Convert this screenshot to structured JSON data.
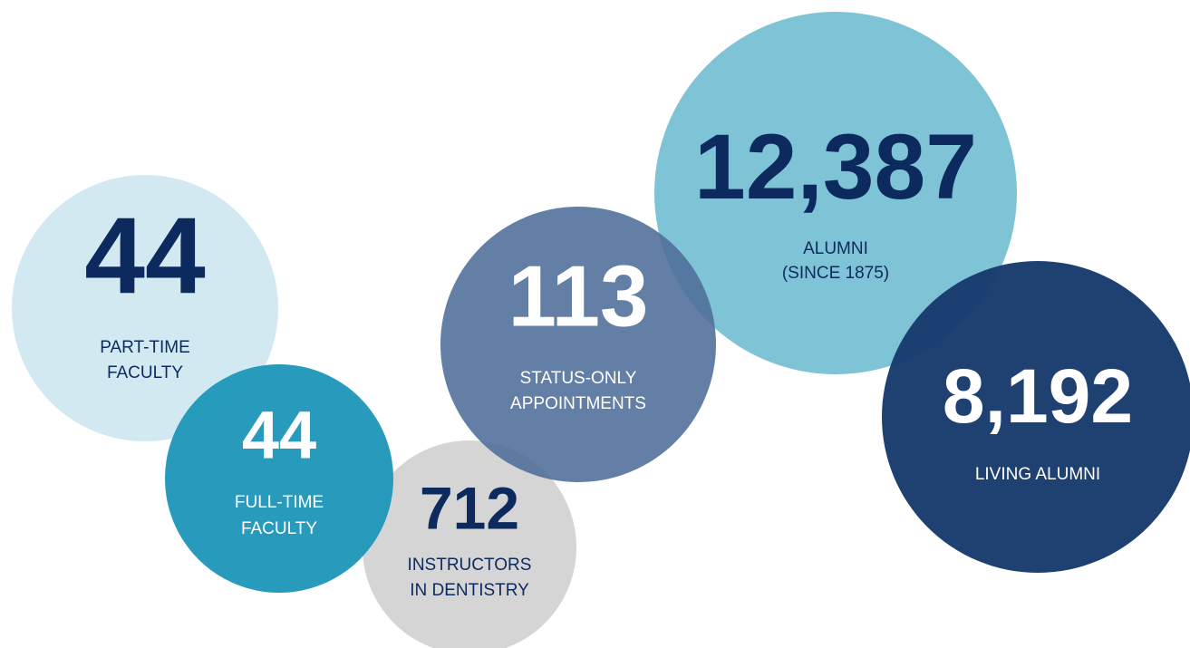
{
  "stats": [
    {
      "number": "44",
      "label": [
        "PART-TIME",
        "FACULTY"
      ]
    },
    {
      "number": "12,387",
      "label": [
        "ALUMNI",
        "(SINCE 1875)"
      ]
    },
    {
      "number": "712",
      "label": [
        "INSTRUCTORS",
        "IN DENTISTRY"
      ]
    },
    {
      "number": "44",
      "label": [
        "FULL-TIME",
        "FACULTY"
      ]
    },
    {
      "number": "113",
      "label": [
        "STATUS-ONLY",
        "APPOINTMENTS"
      ]
    },
    {
      "number": "8,192",
      "label": [
        "LIVING ALUMNI"
      ]
    }
  ]
}
